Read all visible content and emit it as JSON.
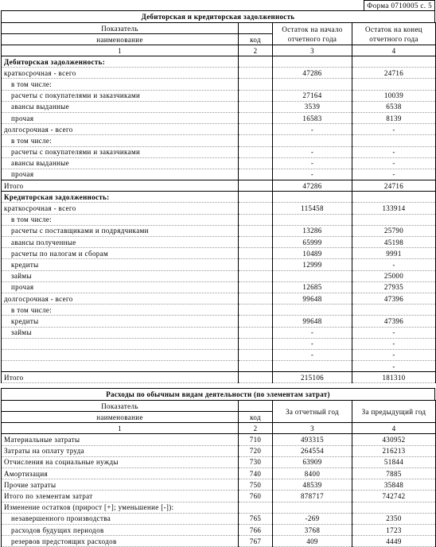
{
  "form": "Форма 0710005 с. 5",
  "receivables": {
    "title": "Дебиторская и кредиторская задолженность",
    "headers": {
      "indicator": "Показатель",
      "name": "наименование",
      "code": "код",
      "start": "Остаток на начало отчетного года",
      "end": "Остаток на конец отчетного года",
      "numbers": [
        1,
        2,
        3,
        4
      ]
    },
    "groups": [
      {
        "heading": "Дебиторская задолженность:",
        "rows": [
          {
            "label": "краткосрочная - всего",
            "start": 47286,
            "end": 24716,
            "children": [
              {
                "label": "в том числе:"
              },
              {
                "label": "расчеты с покупателями и заказчиками",
                "start": 27164,
                "end": 10039
              },
              {
                "label": "авансы выданные",
                "start": 3539,
                "end": 6538
              },
              {
                "label": "прочая",
                "start": 16583,
                "end": 8139
              }
            ]
          },
          {
            "label": "долгосрочная - всего",
            "start": "-",
            "end": "-",
            "children": [
              {
                "label": "в том числе:"
              },
              {
                "label": "расчеты с покупателями и заказчиками",
                "start": "-",
                "end": "-"
              },
              {
                "label": "авансы выданные",
                "start": "-",
                "end": "-"
              },
              {
                "label": "прочая",
                "start": "-",
                "end": "-"
              }
            ]
          }
        ],
        "total": {
          "label": "Итого",
          "start": 47286,
          "end": 24716
        }
      },
      {
        "heading": "Кредиторская задолженность:",
        "rows": [
          {
            "label": "краткосрочная - всего",
            "start": 115458,
            "end": 133914,
            "children": [
              {
                "label": "в том числе:"
              },
              {
                "label": "расчеты с поставщиками и подрядчиками",
                "start": 13286,
                "end": 25790
              },
              {
                "label": "авансы полученные",
                "start": 65999,
                "end": 45198
              },
              {
                "label": "расчеты по налогам и сборам",
                "start": 10489,
                "end": 9991
              },
              {
                "label": "кредиты",
                "start": 12999,
                "end": "-"
              },
              {
                "label": "займы",
                "start": null,
                "end": 25000
              },
              {
                "label": "прочая",
                "start": 12685,
                "end": 27935
              }
            ]
          },
          {
            "label": "долгосрочная - всего",
            "start": 99648,
            "end": 47396,
            "children": [
              {
                "label": "в том числе:"
              },
              {
                "label": "кредиты",
                "start": 99648,
                "end": 47396
              },
              {
                "label": "займы",
                "start": "-",
                "end": "-"
              },
              {
                "label": null,
                "start": "-",
                "end": "-"
              },
              {
                "label": null,
                "start": "-",
                "end": "-"
              },
              {
                "label": null,
                "start": null,
                "end": "-"
              }
            ]
          }
        ],
        "total": {
          "label": "Итого",
          "start": 215106,
          "end": 181310
        }
      }
    ]
  },
  "expenses": {
    "title": "Расходы по обычным видам деятельности (по элементам затрат)",
    "headers": {
      "indicator": "Показатель",
      "name": "наименование",
      "code": "код",
      "current": "За отчетный год",
      "previous": "За предыдущий год",
      "numbers": [
        1,
        2,
        3,
        4
      ]
    },
    "rows": [
      {
        "label": "Материальные затраты",
        "code": 710,
        "current": 493315,
        "previous": 430952
      },
      {
        "label": "Затраты на оплату труда",
        "code": 720,
        "current": 264554,
        "previous": 216213
      },
      {
        "label": "Отчисления на социальные нужды",
        "code": 730,
        "current": 63909,
        "previous": 51844
      },
      {
        "label": "Амортизация",
        "code": 740,
        "current": 8400,
        "previous": 7885
      },
      {
        "label": "Прочие затраты",
        "code": 750,
        "current": 48539,
        "previous": 35848
      },
      {
        "label": "Итого по элементам затрат",
        "code": 760,
        "current": 878717,
        "previous": 742742
      }
    ],
    "changes": {
      "label": "Изменение остатков (прирост [+]; уменьшение [-]):",
      "rows": [
        {
          "label": "незавершенного производства",
          "code": 765,
          "current": -269,
          "previous": 2350
        },
        {
          "label": "расходов будущих периодов",
          "code": 766,
          "current": 3768,
          "previous": 1723
        },
        {
          "label": "резервов предстоящих расходов",
          "code": 767,
          "current": 409,
          "previous": 4449
        }
      ]
    }
  }
}
